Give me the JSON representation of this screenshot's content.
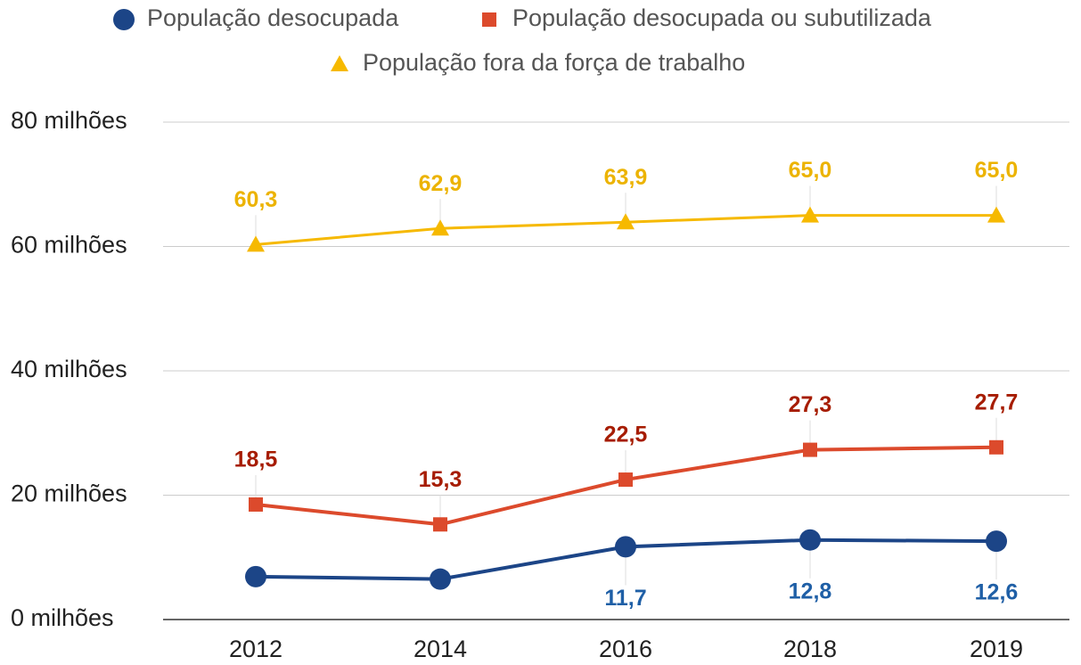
{
  "chart_data": {
    "type": "line",
    "categories": [
      "2012",
      "2014",
      "2016",
      "2018",
      "2019"
    ],
    "series": [
      {
        "name": "População desocupada",
        "color": "#1c4587",
        "label_color": "#1f5fa6",
        "marker": "circle",
        "label_position": "below",
        "values": [
          6.9,
          6.5,
          11.7,
          12.8,
          12.6
        ],
        "value_labels": [
          null,
          null,
          "11,7",
          "12,8",
          "12,6"
        ]
      },
      {
        "name": "População desocupada ou subutilizada",
        "color": "#dc4a2c",
        "label_color": "#a61c00",
        "marker": "square",
        "label_position": "above",
        "values": [
          18.5,
          15.3,
          22.5,
          27.3,
          27.7
        ],
        "value_labels": [
          "18,5",
          "15,3",
          "22,5",
          "27,3",
          "27,7"
        ]
      },
      {
        "name": "População fora da força de trabalho",
        "color": "#f6b900",
        "label_color": "#ecb300",
        "marker": "triangle",
        "label_position": "above",
        "values": [
          60.3,
          62.9,
          63.9,
          65.0,
          65.0
        ],
        "value_labels": [
          "60,3",
          "62,9",
          "63,9",
          "65,0",
          "65,0"
        ]
      }
    ],
    "ylim": [
      0,
      80
    ],
    "yticks": [
      {
        "value": 0,
        "label": "0 milhões"
      },
      {
        "value": 20,
        "label": "20 milhões"
      },
      {
        "value": 40,
        "label": "40 milhões"
      },
      {
        "value": 60,
        "label": "60 milhões"
      },
      {
        "value": 80,
        "label": "80 milhões"
      }
    ],
    "grid": true,
    "legend": "top"
  }
}
